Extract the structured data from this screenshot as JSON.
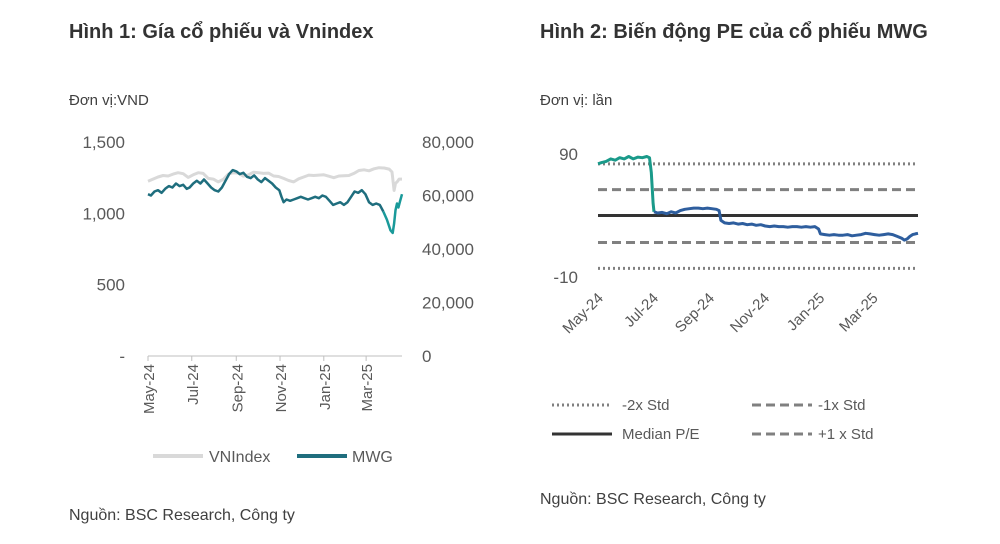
{
  "figure1": {
    "title": "Hình 1: Gía cổ phiếu và Vnindex",
    "unit": "Đơn vị:VND",
    "source": "Nguồn: BSC Research, Công ty"
  },
  "figure2": {
    "title": "Hình 2: Biến động PE của cổ phiếu MWG",
    "unit": "Đơn vị: lần",
    "source": "Nguồn: BSC Research, Công ty"
  },
  "colors": {
    "vnindex": "#d9d9d9",
    "mwg": "#1f6e7e",
    "mwg_recent": "#1a9a9a",
    "pe_early": "#1a9a8a",
    "pe_late": "#2e5e9e",
    "median": "#333333",
    "std": "#808080",
    "axis": "#bfbfbf"
  },
  "chart_data": [
    {
      "type": "line",
      "title": "Hình 1: Gía cổ phiếu và Vnindex",
      "x_ticks": [
        "May-24",
        "Jul-24",
        "Sep-24",
        "Nov-24",
        "Jan-25",
        "Mar-25"
      ],
      "y_left": {
        "ticks": [
          "1,500",
          "1,000",
          "500",
          "-"
        ],
        "range": [
          0,
          1500
        ]
      },
      "y_right": {
        "ticks": [
          "80,000",
          "60,000",
          "40,000",
          "20,000",
          "0"
        ],
        "range": [
          0,
          80000
        ]
      },
      "x_range": [
        "2024-05-01",
        "2025-04-20"
      ],
      "legend": [
        "VNIndex",
        "MWG"
      ],
      "legend_position": "bottom",
      "series": [
        {
          "name": "VNIndex",
          "axis": "left",
          "points": [
            [
              "2024-05-01",
              1225
            ],
            [
              "2024-05-08",
              1240
            ],
            [
              "2024-05-15",
              1255
            ],
            [
              "2024-05-22",
              1265
            ],
            [
              "2024-05-29",
              1262
            ],
            [
              "2024-06-05",
              1275
            ],
            [
              "2024-06-12",
              1285
            ],
            [
              "2024-06-19",
              1278
            ],
            [
              "2024-06-26",
              1252
            ],
            [
              "2024-07-03",
              1270
            ],
            [
              "2024-07-10",
              1285
            ],
            [
              "2024-07-17",
              1280
            ],
            [
              "2024-07-24",
              1245
            ],
            [
              "2024-07-31",
              1240
            ],
            [
              "2024-08-07",
              1220
            ],
            [
              "2024-08-14",
              1238
            ],
            [
              "2024-08-21",
              1275
            ],
            [
              "2024-08-28",
              1285
            ],
            [
              "2024-09-04",
              1282
            ],
            [
              "2024-09-11",
              1260
            ],
            [
              "2024-09-18",
              1270
            ],
            [
              "2024-09-25",
              1288
            ],
            [
              "2024-10-02",
              1285
            ],
            [
              "2024-10-09",
              1280
            ],
            [
              "2024-10-16",
              1282
            ],
            [
              "2024-10-23",
              1262
            ],
            [
              "2024-10-30",
              1258
            ],
            [
              "2024-11-06",
              1245
            ],
            [
              "2024-11-13",
              1230
            ],
            [
              "2024-11-20",
              1220
            ],
            [
              "2024-11-27",
              1242
            ],
            [
              "2024-12-04",
              1255
            ],
            [
              "2024-12-11",
              1268
            ],
            [
              "2024-12-18",
              1265
            ],
            [
              "2024-12-25",
              1268
            ],
            [
              "2025-01-01",
              1270
            ],
            [
              "2025-01-08",
              1260
            ],
            [
              "2025-01-15",
              1250
            ],
            [
              "2025-01-22",
              1262
            ],
            [
              "2025-02-05",
              1265
            ],
            [
              "2025-02-12",
              1280
            ],
            [
              "2025-02-19",
              1300
            ],
            [
              "2025-02-26",
              1305
            ],
            [
              "2025-03-05",
              1298
            ],
            [
              "2025-03-12",
              1312
            ],
            [
              "2025-03-19",
              1320
            ],
            [
              "2025-03-26",
              1318
            ],
            [
              "2025-04-02",
              1310
            ],
            [
              "2025-04-06",
              1290
            ],
            [
              "2025-04-09",
              1160
            ],
            [
              "2025-04-11",
              1210
            ],
            [
              "2025-04-14",
              1225
            ],
            [
              "2025-04-16",
              1240
            ],
            [
              "2025-04-20",
              1240
            ]
          ]
        },
        {
          "name": "MWG",
          "axis": "right",
          "points": [
            [
              "2024-05-01",
              60500
            ],
            [
              "2024-05-05",
              60000
            ],
            [
              "2024-05-10",
              61500
            ],
            [
              "2024-05-15",
              62000
            ],
            [
              "2024-05-20",
              61000
            ],
            [
              "2024-05-25",
              62500
            ],
            [
              "2024-05-30",
              63500
            ],
            [
              "2024-06-04",
              63000
            ],
            [
              "2024-06-09",
              64500
            ],
            [
              "2024-06-14",
              63500
            ],
            [
              "2024-06-19",
              64000
            ],
            [
              "2024-06-24",
              62500
            ],
            [
              "2024-06-28",
              63000
            ],
            [
              "2024-07-03",
              64500
            ],
            [
              "2024-07-08",
              65500
            ],
            [
              "2024-07-13",
              64500
            ],
            [
              "2024-07-18",
              66000
            ],
            [
              "2024-07-23",
              64500
            ],
            [
              "2024-07-28",
              63000
            ],
            [
              "2024-08-02",
              62000
            ],
            [
              "2024-08-07",
              61500
            ],
            [
              "2024-08-12",
              63000
            ],
            [
              "2024-08-17",
              65500
            ],
            [
              "2024-08-22",
              68000
            ],
            [
              "2024-08-27",
              69500
            ],
            [
              "2024-09-01",
              69000
            ],
            [
              "2024-09-06",
              68000
            ],
            [
              "2024-09-11",
              68500
            ],
            [
              "2024-09-16",
              67000
            ],
            [
              "2024-09-21",
              66500
            ],
            [
              "2024-09-26",
              67500
            ],
            [
              "2024-10-01",
              66000
            ],
            [
              "2024-10-06",
              65000
            ],
            [
              "2024-10-11",
              66500
            ],
            [
              "2024-10-16",
              65500
            ],
            [
              "2024-10-21",
              64500
            ],
            [
              "2024-10-26",
              63000
            ],
            [
              "2024-10-31",
              62000
            ],
            [
              "2024-11-03",
              59500
            ],
            [
              "2024-11-06",
              57500
            ],
            [
              "2024-11-10",
              58500
            ],
            [
              "2024-11-15",
              58000
            ],
            [
              "2024-11-20",
              58500
            ],
            [
              "2024-11-25",
              59000
            ],
            [
              "2024-11-30",
              59500
            ],
            [
              "2024-12-05",
              59000
            ],
            [
              "2024-12-10",
              58500
            ],
            [
              "2024-12-15",
              59000
            ],
            [
              "2024-12-20",
              59500
            ],
            [
              "2024-12-25",
              59000
            ],
            [
              "2024-12-30",
              60000
            ],
            [
              "2025-01-04",
              59500
            ],
            [
              "2025-01-09",
              58000
            ],
            [
              "2025-01-14",
              56500
            ],
            [
              "2025-01-19",
              57000
            ],
            [
              "2025-01-24",
              57500
            ],
            [
              "2025-01-29",
              56500
            ],
            [
              "2025-02-03",
              57500
            ],
            [
              "2025-02-08",
              59500
            ],
            [
              "2025-02-13",
              61500
            ],
            [
              "2025-02-18",
              61000
            ],
            [
              "2025-02-23",
              62000
            ],
            [
              "2025-02-28",
              60500
            ],
            [
              "2025-03-05",
              57500
            ],
            [
              "2025-03-10",
              56500
            ],
            [
              "2025-03-15",
              57000
            ],
            [
              "2025-03-20",
              56500
            ],
            [
              "2025-03-25",
              54000
            ],
            [
              "2025-03-30",
              51000
            ],
            [
              "2025-04-04",
              47000
            ],
            [
              "2025-04-07",
              46000
            ],
            [
              "2025-04-09",
              49500
            ],
            [
              "2025-04-11",
              54500
            ],
            [
              "2025-04-13",
              57000
            ],
            [
              "2025-04-15",
              55500
            ],
            [
              "2025-04-17",
              57500
            ],
            [
              "2025-04-20",
              60500
            ]
          ]
        }
      ]
    },
    {
      "type": "line",
      "title": "Hình 2: Biến động PE của cổ phiếu MWG",
      "x_ticks": [
        "May-24",
        "Jul-24",
        "Sep-24",
        "Nov-24",
        "Jan-25",
        "Mar-25"
      ],
      "y_ticks": [
        "90",
        "-10"
      ],
      "y_range": [
        -10,
        90
      ],
      "x_range": [
        "2024-05-01",
        "2025-04-20"
      ],
      "legend": [
        "-2x Std",
        "-1x Std",
        "Median P/E",
        "+1 x Std"
      ],
      "legend_position": "bottom",
      "reference_lines": {
        "plus2_std": 82,
        "plus1_std": 61,
        "median": 40,
        "minus1_std": 18,
        "minus2_std": -3
      },
      "series": [
        {
          "name": "P/E",
          "points": [
            [
              "2024-05-01",
              82
            ],
            [
              "2024-05-05",
              83
            ],
            [
              "2024-05-10",
              84
            ],
            [
              "2024-05-15",
              86
            ],
            [
              "2024-05-20",
              85
            ],
            [
              "2024-05-25",
              87
            ],
            [
              "2024-05-30",
              86
            ],
            [
              "2024-06-04",
              88
            ],
            [
              "2024-06-09",
              86
            ],
            [
              "2024-06-14",
              87.5
            ],
            [
              "2024-06-19",
              87
            ],
            [
              "2024-06-24",
              88
            ],
            [
              "2024-06-27",
              87
            ],
            [
              "2024-06-29",
              75
            ],
            [
              "2024-07-01",
              50
            ],
            [
              "2024-07-02",
              43
            ],
            [
              "2024-07-06",
              42
            ],
            [
              "2024-07-11",
              42.5
            ],
            [
              "2024-07-16",
              41.5
            ],
            [
              "2024-07-21",
              43
            ],
            [
              "2024-07-26",
              42
            ],
            [
              "2024-07-31",
              44
            ],
            [
              "2024-08-05",
              45
            ],
            [
              "2024-08-10",
              45.5
            ],
            [
              "2024-08-15",
              46
            ],
            [
              "2024-08-20",
              46
            ],
            [
              "2024-08-25",
              45.5
            ],
            [
              "2024-08-30",
              46
            ],
            [
              "2024-09-04",
              45.5
            ],
            [
              "2024-09-09",
              45
            ],
            [
              "2024-09-12",
              44
            ],
            [
              "2024-09-14",
              36
            ],
            [
              "2024-09-18",
              34
            ],
            [
              "2024-09-23",
              33.5
            ],
            [
              "2024-09-28",
              34
            ],
            [
              "2024-10-03",
              33
            ],
            [
              "2024-10-08",
              33.5
            ],
            [
              "2024-10-13",
              32.5
            ],
            [
              "2024-10-18",
              33
            ],
            [
              "2024-10-23",
              32
            ],
            [
              "2024-10-28",
              32.5
            ],
            [
              "2024-11-02",
              31.5
            ],
            [
              "2024-11-07",
              31
            ],
            [
              "2024-11-12",
              31.5
            ],
            [
              "2024-11-17",
              31
            ],
            [
              "2024-11-22",
              31
            ],
            [
              "2024-11-27",
              30.5
            ],
            [
              "2024-12-02",
              31
            ],
            [
              "2024-12-07",
              31
            ],
            [
              "2024-12-12",
              30.5
            ],
            [
              "2024-12-17",
              31
            ],
            [
              "2024-12-22",
              30.5
            ],
            [
              "2024-12-27",
              31
            ],
            [
              "2024-12-31",
              29
            ],
            [
              "2025-01-02",
              25
            ],
            [
              "2025-01-07",
              24.5
            ],
            [
              "2025-01-12",
              24
            ],
            [
              "2025-01-17",
              24.5
            ],
            [
              "2025-01-22",
              24
            ],
            [
              "2025-01-27",
              24
            ],
            [
              "2025-02-01",
              24.5
            ],
            [
              "2025-02-06",
              23.5
            ],
            [
              "2025-02-11",
              24
            ],
            [
              "2025-02-16",
              24.5
            ],
            [
              "2025-02-21",
              25.5
            ],
            [
              "2025-02-26",
              25
            ],
            [
              "2025-03-03",
              24.5
            ],
            [
              "2025-03-08",
              24
            ],
            [
              "2025-03-13",
              24.5
            ],
            [
              "2025-03-18",
              25
            ],
            [
              "2025-03-23",
              24.5
            ],
            [
              "2025-03-28",
              23
            ],
            [
              "2025-04-02",
              21.5
            ],
            [
              "2025-04-05",
              20
            ],
            [
              "2025-04-08",
              21
            ],
            [
              "2025-04-11",
              23
            ],
            [
              "2025-04-14",
              24.5
            ],
            [
              "2025-04-17",
              25
            ],
            [
              "2025-04-20",
              25.5
            ]
          ]
        }
      ]
    }
  ]
}
